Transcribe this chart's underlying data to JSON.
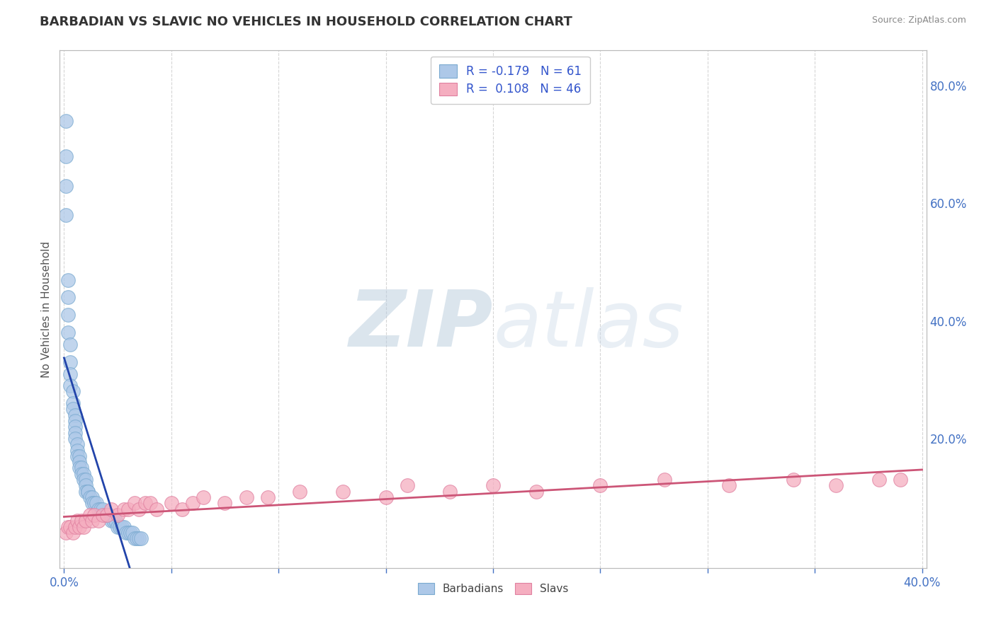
{
  "title": "BARBADIAN VS SLAVIC NO VEHICLES IN HOUSEHOLD CORRELATION CHART",
  "source_text": "Source: ZipAtlas.com",
  "ylabel": "No Vehicles in Household",
  "xlim": [
    -0.002,
    0.402
  ],
  "ylim": [
    -0.02,
    0.86
  ],
  "xtick_positions": [
    0.0,
    0.05,
    0.1,
    0.15,
    0.2,
    0.25,
    0.3,
    0.35,
    0.4
  ],
  "xticklabels": [
    "0.0%",
    "",
    "",
    "",
    "",
    "",
    "",
    "",
    "40.0%"
  ],
  "ytick_positions": [
    0.0,
    0.2,
    0.4,
    0.6,
    0.8
  ],
  "yticklabels_right": [
    "",
    "20.0%",
    "40.0%",
    "60.0%",
    "80.0%"
  ],
  "barbadian_color": "#adc8e8",
  "slav_color": "#f5aec0",
  "barbadian_edge": "#7aaad0",
  "slav_edge": "#e080a0",
  "trend_barbadian_color": "#2244aa",
  "trend_slav_color": "#cc5577",
  "R_barbadian": -0.179,
  "N_barbadian": 61,
  "R_slav": 0.108,
  "N_slav": 46,
  "watermark_zip": "ZIP",
  "watermark_atlas": "atlas",
  "background_color": "#ffffff",
  "grid_color": "#cccccc",
  "legend_text_color": "#3355cc",
  "axis_tick_color": "#4472c4",
  "barb_x": [
    0.001,
    0.001,
    0.001,
    0.001,
    0.002,
    0.002,
    0.002,
    0.002,
    0.003,
    0.003,
    0.003,
    0.003,
    0.004,
    0.004,
    0.004,
    0.005,
    0.005,
    0.005,
    0.005,
    0.005,
    0.006,
    0.006,
    0.006,
    0.007,
    0.007,
    0.007,
    0.008,
    0.008,
    0.009,
    0.009,
    0.01,
    0.01,
    0.01,
    0.011,
    0.011,
    0.012,
    0.013,
    0.013,
    0.014,
    0.015,
    0.016,
    0.017,
    0.018,
    0.019,
    0.02,
    0.021,
    0.022,
    0.023,
    0.024,
    0.025,
    0.026,
    0.027,
    0.028,
    0.029,
    0.03,
    0.031,
    0.032,
    0.033,
    0.034,
    0.035,
    0.036
  ],
  "barb_y": [
    0.74,
    0.68,
    0.63,
    0.58,
    0.47,
    0.44,
    0.41,
    0.38,
    0.36,
    0.33,
    0.31,
    0.29,
    0.28,
    0.26,
    0.25,
    0.24,
    0.23,
    0.22,
    0.21,
    0.2,
    0.19,
    0.18,
    0.17,
    0.17,
    0.16,
    0.15,
    0.15,
    0.14,
    0.14,
    0.13,
    0.13,
    0.12,
    0.11,
    0.11,
    0.11,
    0.1,
    0.1,
    0.09,
    0.09,
    0.09,
    0.08,
    0.08,
    0.08,
    0.07,
    0.07,
    0.07,
    0.06,
    0.06,
    0.06,
    0.05,
    0.05,
    0.05,
    0.05,
    0.04,
    0.04,
    0.04,
    0.04,
    0.03,
    0.03,
    0.03,
    0.03
  ],
  "slav_x": [
    0.001,
    0.002,
    0.003,
    0.004,
    0.005,
    0.006,
    0.007,
    0.008,
    0.009,
    0.01,
    0.012,
    0.013,
    0.014,
    0.016,
    0.018,
    0.02,
    0.022,
    0.025,
    0.028,
    0.03,
    0.033,
    0.035,
    0.038,
    0.04,
    0.043,
    0.05,
    0.055,
    0.06,
    0.065,
    0.075,
    0.085,
    0.095,
    0.11,
    0.13,
    0.15,
    0.16,
    0.18,
    0.2,
    0.22,
    0.25,
    0.28,
    0.31,
    0.34,
    0.36,
    0.38,
    0.39
  ],
  "slav_y": [
    0.04,
    0.05,
    0.05,
    0.04,
    0.05,
    0.06,
    0.05,
    0.06,
    0.05,
    0.06,
    0.07,
    0.06,
    0.07,
    0.06,
    0.07,
    0.07,
    0.08,
    0.07,
    0.08,
    0.08,
    0.09,
    0.08,
    0.09,
    0.09,
    0.08,
    0.09,
    0.08,
    0.09,
    0.1,
    0.09,
    0.1,
    0.1,
    0.11,
    0.11,
    0.1,
    0.12,
    0.11,
    0.12,
    0.11,
    0.12,
    0.13,
    0.12,
    0.13,
    0.12,
    0.13,
    0.13
  ]
}
